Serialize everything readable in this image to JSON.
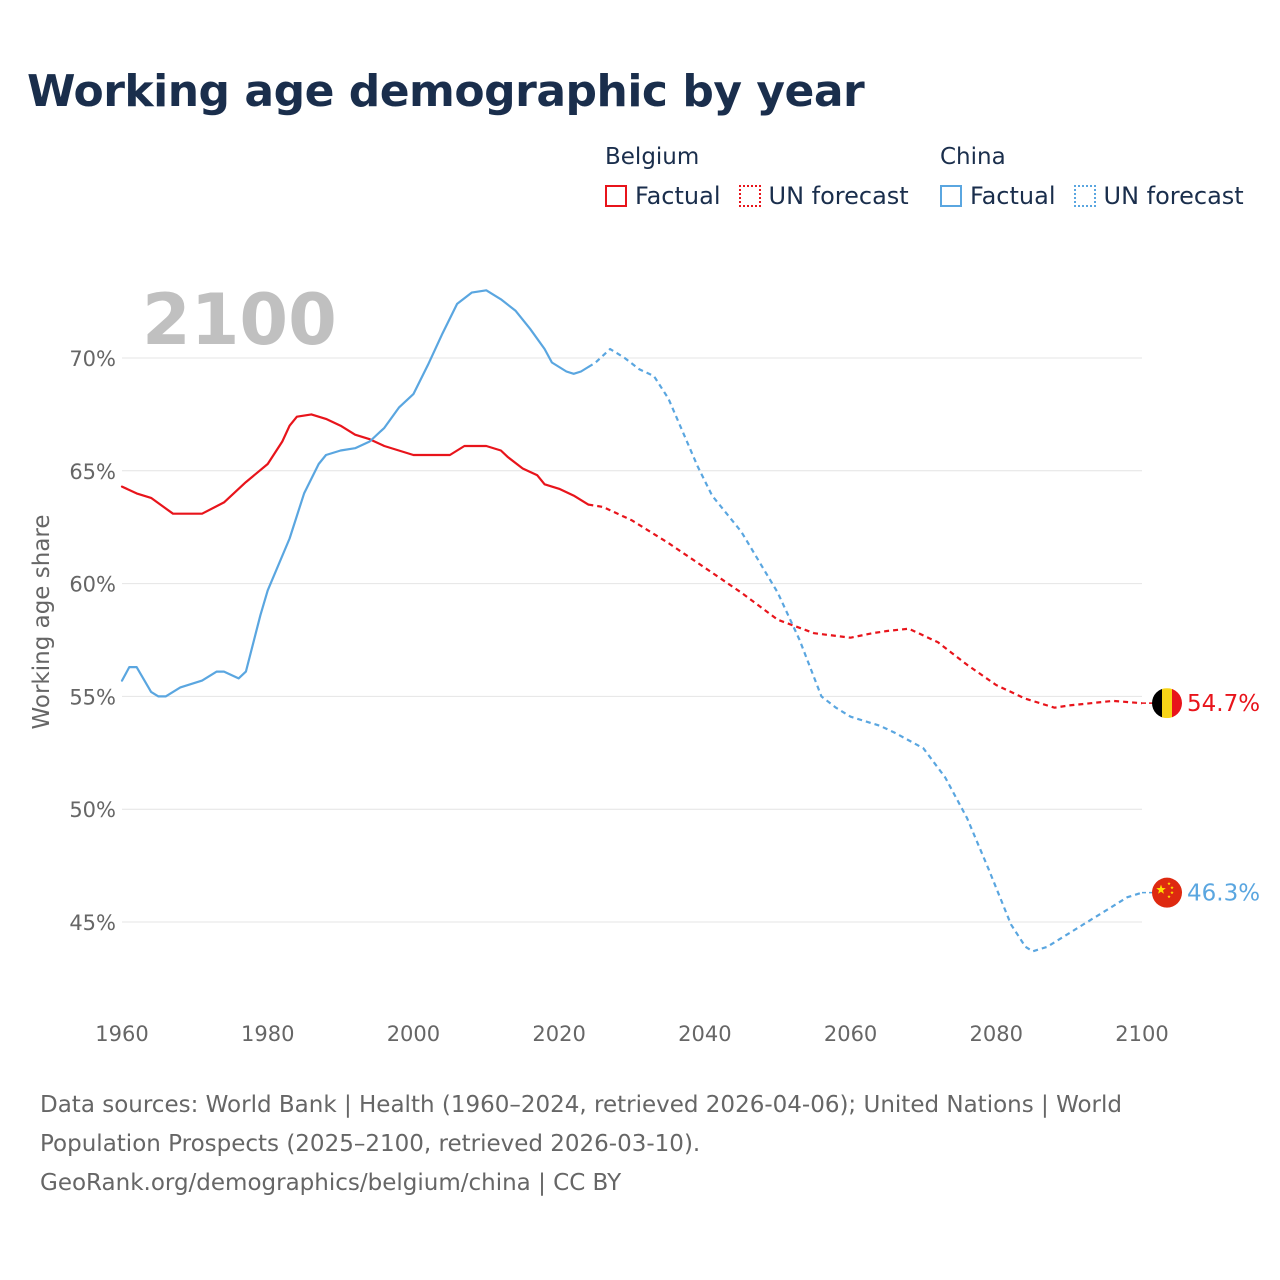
{
  "title": "Working age demographic by year",
  "legend": {
    "groups": [
      {
        "country": "Belgium",
        "factual_label": "Factual",
        "forecast_label": "UN forecast",
        "color": "#e8141b"
      },
      {
        "country": "China",
        "factual_label": "Factual",
        "forecast_label": "UN forecast",
        "color": "#5aa6e0"
      }
    ]
  },
  "footer": {
    "line1": "Data sources: World Bank | Health (1960–2024, retrieved 2026-04-06); United Nations | World Population Prospects (2025–2100, retrieved 2026-03-10).",
    "line2": "GeoRank.org/demographics/belgium/china | CC BY"
  },
  "chart_data": {
    "type": "line",
    "title": "Working age demographic by year",
    "xlabel": "",
    "ylabel": "Working age share",
    "current_year_label": "2100",
    "xlim": [
      1960,
      2100
    ],
    "ylim": [
      41,
      73
    ],
    "x_ticks": [
      1960,
      1980,
      2000,
      2020,
      2040,
      2060,
      2080,
      2100
    ],
    "y_ticks": [
      {
        "value": 45,
        "label": "45%"
      },
      {
        "value": 50,
        "label": "50%"
      },
      {
        "value": 55,
        "label": "55%"
      },
      {
        "value": 60,
        "label": "60%"
      },
      {
        "value": 65,
        "label": "65%"
      },
      {
        "value": 70,
        "label": "70%"
      }
    ],
    "grid": true,
    "factual_end_year": 2024,
    "series": [
      {
        "name": "Belgium",
        "color": "#e8141b",
        "end_label": "54.7%",
        "flag": "belgium-flag",
        "points": [
          [
            1960,
            64.3
          ],
          [
            1962,
            64.0
          ],
          [
            1964,
            63.8
          ],
          [
            1967,
            63.1
          ],
          [
            1970,
            63.1
          ],
          [
            1971,
            63.1
          ],
          [
            1974,
            63.6
          ],
          [
            1977,
            64.5
          ],
          [
            1980,
            65.3
          ],
          [
            1982,
            66.3
          ],
          [
            1983,
            67.0
          ],
          [
            1984,
            67.4
          ],
          [
            1986,
            67.5
          ],
          [
            1988,
            67.3
          ],
          [
            1990,
            67.0
          ],
          [
            1992,
            66.6
          ],
          [
            1994,
            66.4
          ],
          [
            1996,
            66.1
          ],
          [
            2000,
            65.7
          ],
          [
            2004,
            65.7
          ],
          [
            2005,
            65.7
          ],
          [
            2007,
            66.1
          ],
          [
            2010,
            66.1
          ],
          [
            2012,
            65.9
          ],
          [
            2013,
            65.6
          ],
          [
            2015,
            65.1
          ],
          [
            2017,
            64.8
          ],
          [
            2018,
            64.4
          ],
          [
            2020,
            64.2
          ],
          [
            2022,
            63.9
          ],
          [
            2024,
            63.5
          ],
          [
            2026,
            63.4
          ],
          [
            2030,
            62.8
          ],
          [
            2035,
            61.8
          ],
          [
            2040,
            60.7
          ],
          [
            2045,
            59.6
          ],
          [
            2050,
            58.4
          ],
          [
            2055,
            57.8
          ],
          [
            2060,
            57.6
          ],
          [
            2063,
            57.8
          ],
          [
            2065,
            57.9
          ],
          [
            2068,
            58.0
          ],
          [
            2072,
            57.4
          ],
          [
            2076,
            56.4
          ],
          [
            2080,
            55.5
          ],
          [
            2084,
            54.9
          ],
          [
            2088,
            54.5
          ],
          [
            2090,
            54.6
          ],
          [
            2093,
            54.7
          ],
          [
            2096,
            54.8
          ],
          [
            2100,
            54.7
          ]
        ]
      },
      {
        "name": "China",
        "color": "#5aa6e0",
        "end_label": "46.3%",
        "flag": "china-flag",
        "points": [
          [
            1960,
            55.7
          ],
          [
            1961,
            56.3
          ],
          [
            1962,
            56.3
          ],
          [
            1964,
            55.2
          ],
          [
            1965,
            55.0
          ],
          [
            1966,
            55.0
          ],
          [
            1968,
            55.4
          ],
          [
            1971,
            55.7
          ],
          [
            1973,
            56.1
          ],
          [
            1974,
            56.1
          ],
          [
            1976,
            55.8
          ],
          [
            1977,
            56.1
          ],
          [
            1979,
            58.6
          ],
          [
            1980,
            59.7
          ],
          [
            1983,
            62.0
          ],
          [
            1985,
            64.0
          ],
          [
            1987,
            65.3
          ],
          [
            1988,
            65.7
          ],
          [
            1990,
            65.9
          ],
          [
            1992,
            66.0
          ],
          [
            1994,
            66.3
          ],
          [
            1996,
            66.9
          ],
          [
            1998,
            67.8
          ],
          [
            2000,
            68.4
          ],
          [
            2002,
            69.7
          ],
          [
            2004,
            71.1
          ],
          [
            2006,
            72.4
          ],
          [
            2008,
            72.9
          ],
          [
            2010,
            73.0
          ],
          [
            2012,
            72.6
          ],
          [
            2014,
            72.1
          ],
          [
            2016,
            71.3
          ],
          [
            2018,
            70.4
          ],
          [
            2019,
            69.8
          ],
          [
            2021,
            69.4
          ],
          [
            2022,
            69.3
          ],
          [
            2023,
            69.4
          ],
          [
            2024,
            69.6
          ],
          [
            2025,
            69.8
          ],
          [
            2027,
            70.4
          ],
          [
            2029,
            70.0
          ],
          [
            2031,
            69.5
          ],
          [
            2033,
            69.2
          ],
          [
            2035,
            68.2
          ],
          [
            2037,
            66.7
          ],
          [
            2039,
            65.2
          ],
          [
            2041,
            63.9
          ],
          [
            2045,
            62.3
          ],
          [
            2050,
            59.6
          ],
          [
            2053,
            57.5
          ],
          [
            2056,
            55.0
          ],
          [
            2058,
            54.5
          ],
          [
            2060,
            54.1
          ],
          [
            2062,
            53.9
          ],
          [
            2064,
            53.7
          ],
          [
            2066,
            53.4
          ],
          [
            2070,
            52.7
          ],
          [
            2073,
            51.4
          ],
          [
            2076,
            49.6
          ],
          [
            2079,
            47.3
          ],
          [
            2082,
            44.9
          ],
          [
            2084,
            43.9
          ],
          [
            2085,
            43.7
          ],
          [
            2087,
            43.9
          ],
          [
            2090,
            44.5
          ],
          [
            2093,
            45.1
          ],
          [
            2096,
            45.7
          ],
          [
            2098,
            46.1
          ],
          [
            2100,
            46.3
          ]
        ]
      }
    ]
  }
}
